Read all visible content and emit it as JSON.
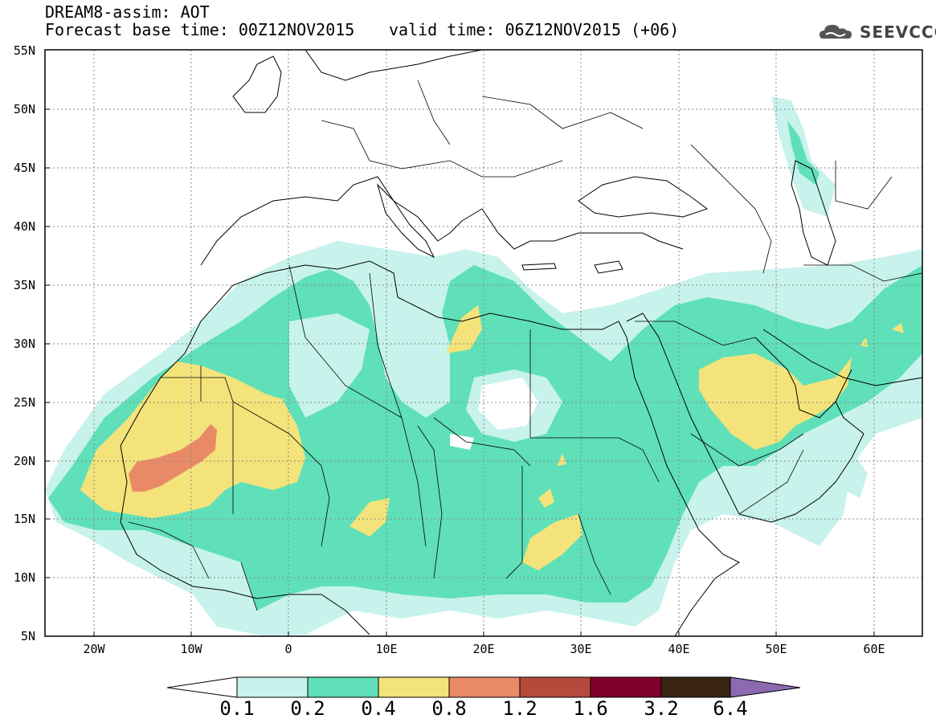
{
  "header": {
    "title": "DREAM8-assim: AOT",
    "base_time": "Forecast base time: 00Z12NOV2015",
    "valid_time": "valid time: 06Z12NOV2015 (+06)",
    "logo_text": "SEEVCCC",
    "logo_icon": "cloud-icon"
  },
  "map": {
    "lat_labels": [
      "55N",
      "50N",
      "45N",
      "40N",
      "35N",
      "30N",
      "25N",
      "20N",
      "15N",
      "10N",
      "5N"
    ],
    "lon_labels": [
      "20W",
      "10W",
      "0",
      "10E",
      "20E",
      "30E",
      "40E",
      "50E",
      "60E"
    ],
    "extent": {
      "lon_min": -25,
      "lon_max": 65,
      "lat_min": 5,
      "lat_max": 55
    }
  },
  "colorbar": {
    "labels": [
      "0.1",
      "0.2",
      "0.4",
      "0.8",
      "1.2",
      "1.6",
      "3.2",
      "6.4"
    ],
    "colors": [
      "#c8f2ec",
      "#5fe0b8",
      "#f3e37a",
      "#e98a67",
      "#b54a3c",
      "#80002a",
      "#3a2414",
      "#8c6ab0"
    ],
    "below_color": "#ffffff"
  },
  "colors": {
    "level_1": "#c8f2ec",
    "level_2": "#5fe0b8",
    "level_3": "#f3e37a",
    "level_4": "#e98a67"
  }
}
